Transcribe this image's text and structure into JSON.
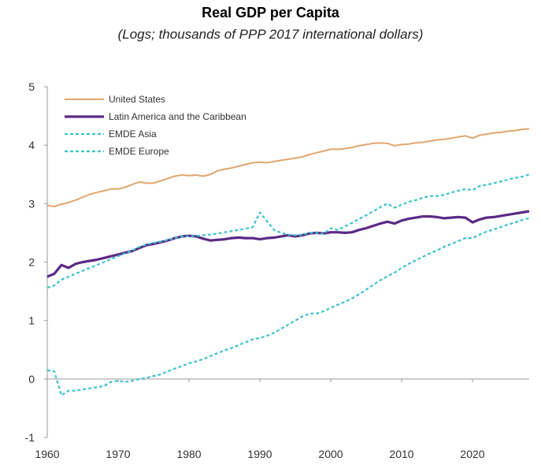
{
  "chart_data": {
    "type": "line",
    "title": "Real GDP per Capita",
    "subtitle": "(Logs; thousands of PPP 2017 international dollars)",
    "xlabel": "",
    "ylabel": "",
    "xlim": [
      1960,
      2028
    ],
    "ylim": [
      -1,
      5
    ],
    "x_ticks": [
      1960,
      1970,
      1980,
      1990,
      2000,
      2010,
      2020
    ],
    "y_ticks": [
      -1,
      0,
      1,
      2,
      3,
      4,
      5
    ],
    "grid": false,
    "legend": "top-left",
    "colors": {
      "United States": "#e0a66e",
      "Latin America and the Caribbean": "#5b2a86",
      "EMDE Asia": "#3cc3cc",
      "EMDE Europe": "#3cc3cc"
    },
    "series": [
      {
        "name": "United States",
        "style": "solid",
        "points": [
          [
            1960,
            2.97
          ],
          [
            1961,
            2.95
          ],
          [
            1962,
            2.99
          ],
          [
            1963,
            3.02
          ],
          [
            1964,
            3.06
          ],
          [
            1965,
            3.11
          ],
          [
            1966,
            3.16
          ],
          [
            1967,
            3.19
          ],
          [
            1968,
            3.22
          ],
          [
            1969,
            3.25
          ],
          [
            1970,
            3.25
          ],
          [
            1971,
            3.28
          ],
          [
            1972,
            3.33
          ],
          [
            1973,
            3.37
          ],
          [
            1974,
            3.35
          ],
          [
            1975,
            3.35
          ],
          [
            1976,
            3.39
          ],
          [
            1977,
            3.43
          ],
          [
            1978,
            3.47
          ],
          [
            1979,
            3.49
          ],
          [
            1980,
            3.48
          ],
          [
            1981,
            3.49
          ],
          [
            1982,
            3.47
          ],
          [
            1983,
            3.5
          ],
          [
            1984,
            3.56
          ],
          [
            1985,
            3.59
          ],
          [
            1986,
            3.61
          ],
          [
            1987,
            3.64
          ],
          [
            1988,
            3.67
          ],
          [
            1989,
            3.7
          ],
          [
            1990,
            3.71
          ],
          [
            1991,
            3.7
          ],
          [
            1992,
            3.72
          ],
          [
            1993,
            3.74
          ],
          [
            1994,
            3.76
          ],
          [
            1995,
            3.78
          ],
          [
            1996,
            3.8
          ],
          [
            1997,
            3.84
          ],
          [
            1998,
            3.87
          ],
          [
            1999,
            3.9
          ],
          [
            2000,
            3.93
          ],
          [
            2001,
            3.93
          ],
          [
            2002,
            3.94
          ],
          [
            2003,
            3.96
          ],
          [
            2004,
            3.99
          ],
          [
            2005,
            4.01
          ],
          [
            2006,
            4.03
          ],
          [
            2007,
            4.04
          ],
          [
            2008,
            4.03
          ],
          [
            2009,
            3.99
          ],
          [
            2010,
            4.01
          ],
          [
            2011,
            4.02
          ],
          [
            2012,
            4.04
          ],
          [
            2013,
            4.05
          ],
          [
            2014,
            4.07
          ],
          [
            2015,
            4.09
          ],
          [
            2016,
            4.1
          ],
          [
            2017,
            4.12
          ],
          [
            2018,
            4.14
          ],
          [
            2019,
            4.16
          ],
          [
            2020,
            4.12
          ],
          [
            2021,
            4.17
          ],
          [
            2022,
            4.19
          ],
          [
            2023,
            4.21
          ],
          [
            2024,
            4.22
          ],
          [
            2025,
            4.24
          ],
          [
            2026,
            4.25
          ],
          [
            2027,
            4.27
          ],
          [
            2028,
            4.28
          ]
        ]
      },
      {
        "name": "Latin America and the Caribbean",
        "style": "solid",
        "points": [
          [
            1960,
            1.75
          ],
          [
            1961,
            1.8
          ],
          [
            1962,
            1.95
          ],
          [
            1963,
            1.9
          ],
          [
            1964,
            1.97
          ],
          [
            1965,
            2.0
          ],
          [
            1966,
            2.02
          ],
          [
            1967,
            2.04
          ],
          [
            1968,
            2.07
          ],
          [
            1969,
            2.1
          ],
          [
            1970,
            2.13
          ],
          [
            1971,
            2.16
          ],
          [
            1972,
            2.19
          ],
          [
            1973,
            2.24
          ],
          [
            1974,
            2.29
          ],
          [
            1975,
            2.31
          ],
          [
            1976,
            2.34
          ],
          [
            1977,
            2.37
          ],
          [
            1978,
            2.41
          ],
          [
            1979,
            2.44
          ],
          [
            1980,
            2.45
          ],
          [
            1981,
            2.44
          ],
          [
            1982,
            2.4
          ],
          [
            1983,
            2.37
          ],
          [
            1984,
            2.38
          ],
          [
            1985,
            2.39
          ],
          [
            1986,
            2.41
          ],
          [
            1987,
            2.42
          ],
          [
            1988,
            2.41
          ],
          [
            1989,
            2.41
          ],
          [
            1990,
            2.39
          ],
          [
            1991,
            2.41
          ],
          [
            1992,
            2.42
          ],
          [
            1993,
            2.44
          ],
          [
            1994,
            2.46
          ],
          [
            1995,
            2.44
          ],
          [
            1996,
            2.46
          ],
          [
            1997,
            2.49
          ],
          [
            1998,
            2.5
          ],
          [
            1999,
            2.49
          ],
          [
            2000,
            2.51
          ],
          [
            2001,
            2.51
          ],
          [
            2002,
            2.5
          ],
          [
            2003,
            2.51
          ],
          [
            2004,
            2.55
          ],
          [
            2005,
            2.58
          ],
          [
            2006,
            2.62
          ],
          [
            2007,
            2.66
          ],
          [
            2008,
            2.69
          ],
          [
            2009,
            2.66
          ],
          [
            2010,
            2.71
          ],
          [
            2011,
            2.74
          ],
          [
            2012,
            2.76
          ],
          [
            2013,
            2.78
          ],
          [
            2014,
            2.78
          ],
          [
            2015,
            2.77
          ],
          [
            2016,
            2.75
          ],
          [
            2017,
            2.76
          ],
          [
            2018,
            2.77
          ],
          [
            2019,
            2.76
          ],
          [
            2020,
            2.68
          ],
          [
            2021,
            2.73
          ],
          [
            2022,
            2.76
          ],
          [
            2023,
            2.77
          ],
          [
            2024,
            2.79
          ],
          [
            2025,
            2.81
          ],
          [
            2026,
            2.83
          ],
          [
            2027,
            2.85
          ],
          [
            2028,
            2.87
          ]
        ]
      },
      {
        "name": "EMDE Asia",
        "style": "dashed",
        "points": [
          [
            1960,
            0.15
          ],
          [
            1961,
            0.13
          ],
          [
            1962,
            -0.28
          ],
          [
            1963,
            -0.2
          ],
          [
            1964,
            -0.2
          ],
          [
            1965,
            -0.18
          ],
          [
            1966,
            -0.16
          ],
          [
            1967,
            -0.14
          ],
          [
            1968,
            -0.12
          ],
          [
            1969,
            -0.05
          ],
          [
            1970,
            -0.03
          ],
          [
            1971,
            -0.05
          ],
          [
            1972,
            -0.03
          ],
          [
            1973,
            0.0
          ],
          [
            1974,
            0.02
          ],
          [
            1975,
            0.05
          ],
          [
            1976,
            0.08
          ],
          [
            1977,
            0.13
          ],
          [
            1978,
            0.18
          ],
          [
            1979,
            0.22
          ],
          [
            1980,
            0.27
          ],
          [
            1981,
            0.3
          ],
          [
            1982,
            0.34
          ],
          [
            1983,
            0.39
          ],
          [
            1984,
            0.44
          ],
          [
            1985,
            0.49
          ],
          [
            1986,
            0.53
          ],
          [
            1987,
            0.58
          ],
          [
            1988,
            0.63
          ],
          [
            1989,
            0.68
          ],
          [
            1990,
            0.7
          ],
          [
            1991,
            0.74
          ],
          [
            1992,
            0.79
          ],
          [
            1993,
            0.86
          ],
          [
            1994,
            0.93
          ],
          [
            1995,
            1.0
          ],
          [
            1996,
            1.07
          ],
          [
            1997,
            1.12
          ],
          [
            1998,
            1.12
          ],
          [
            1999,
            1.16
          ],
          [
            2000,
            1.22
          ],
          [
            2001,
            1.27
          ],
          [
            2002,
            1.32
          ],
          [
            2003,
            1.38
          ],
          [
            2004,
            1.45
          ],
          [
            2005,
            1.53
          ],
          [
            2006,
            1.61
          ],
          [
            2007,
            1.69
          ],
          [
            2008,
            1.76
          ],
          [
            2009,
            1.82
          ],
          [
            2010,
            1.9
          ],
          [
            2011,
            1.97
          ],
          [
            2012,
            2.03
          ],
          [
            2013,
            2.09
          ],
          [
            2014,
            2.15
          ],
          [
            2015,
            2.2
          ],
          [
            2016,
            2.26
          ],
          [
            2017,
            2.31
          ],
          [
            2018,
            2.36
          ],
          [
            2019,
            2.41
          ],
          [
            2020,
            2.41
          ],
          [
            2021,
            2.47
          ],
          [
            2022,
            2.52
          ],
          [
            2023,
            2.56
          ],
          [
            2024,
            2.6
          ],
          [
            2025,
            2.64
          ],
          [
            2026,
            2.68
          ],
          [
            2027,
            2.72
          ],
          [
            2028,
            2.75
          ]
        ]
      },
      {
        "name": "EMDE Europe",
        "style": "dashed",
        "points": [
          [
            1960,
            1.56
          ],
          [
            1961,
            1.6
          ],
          [
            1962,
            1.7
          ],
          [
            1963,
            1.75
          ],
          [
            1964,
            1.8
          ],
          [
            1965,
            1.85
          ],
          [
            1966,
            1.9
          ],
          [
            1967,
            1.95
          ],
          [
            1968,
            2.0
          ],
          [
            1969,
            2.05
          ],
          [
            1970,
            2.1
          ],
          [
            1971,
            2.15
          ],
          [
            1972,
            2.2
          ],
          [
            1973,
            2.26
          ],
          [
            1974,
            2.3
          ],
          [
            1975,
            2.33
          ],
          [
            1976,
            2.35
          ],
          [
            1977,
            2.38
          ],
          [
            1978,
            2.41
          ],
          [
            1979,
            2.44
          ],
          [
            1980,
            2.44
          ],
          [
            1981,
            2.45
          ],
          [
            1982,
            2.46
          ],
          [
            1983,
            2.47
          ],
          [
            1984,
            2.49
          ],
          [
            1985,
            2.51
          ],
          [
            1986,
            2.53
          ],
          [
            1987,
            2.55
          ],
          [
            1988,
            2.57
          ],
          [
            1989,
            2.6
          ],
          [
            1990,
            2.85
          ],
          [
            1991,
            2.7
          ],
          [
            1992,
            2.55
          ],
          [
            1993,
            2.5
          ],
          [
            1994,
            2.47
          ],
          [
            1995,
            2.46
          ],
          [
            1996,
            2.47
          ],
          [
            1997,
            2.5
          ],
          [
            1998,
            2.5
          ],
          [
            1999,
            2.48
          ],
          [
            2000,
            2.58
          ],
          [
            2001,
            2.55
          ],
          [
            2002,
            2.61
          ],
          [
            2003,
            2.67
          ],
          [
            2004,
            2.74
          ],
          [
            2005,
            2.8
          ],
          [
            2006,
            2.87
          ],
          [
            2007,
            2.94
          ],
          [
            2008,
            3.0
          ],
          [
            2009,
            2.93
          ],
          [
            2010,
            2.98
          ],
          [
            2011,
            3.03
          ],
          [
            2012,
            3.06
          ],
          [
            2013,
            3.1
          ],
          [
            2014,
            3.13
          ],
          [
            2015,
            3.13
          ],
          [
            2016,
            3.15
          ],
          [
            2017,
            3.19
          ],
          [
            2018,
            3.22
          ],
          [
            2019,
            3.25
          ],
          [
            2020,
            3.23
          ],
          [
            2021,
            3.3
          ],
          [
            2022,
            3.32
          ],
          [
            2023,
            3.35
          ],
          [
            2024,
            3.38
          ],
          [
            2025,
            3.41
          ],
          [
            2026,
            3.44
          ],
          [
            2027,
            3.46
          ],
          [
            2028,
            3.5
          ]
        ]
      }
    ]
  }
}
